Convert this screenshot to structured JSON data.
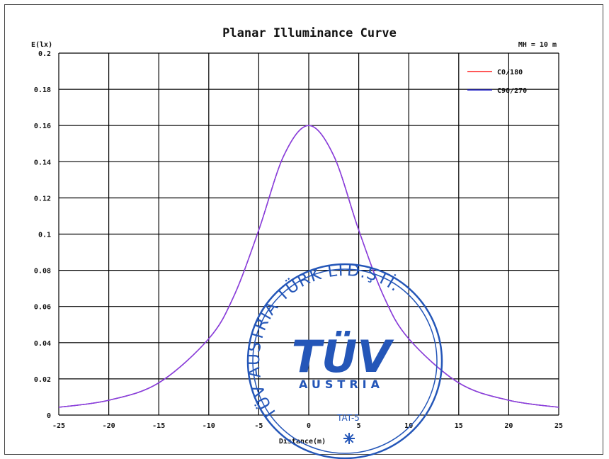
{
  "chart_data": {
    "type": "line",
    "title": "Planar Illuminance Curve",
    "ylabel": "E(lx)",
    "xlabel": "Distance(m)",
    "annotation": "MH = 10 m",
    "xlim": [
      -25,
      25
    ],
    "ylim": [
      0,
      0.2
    ],
    "x_ticks": [
      "-25",
      "-20",
      "-15",
      "-10",
      "-5",
      "0",
      "5",
      "10",
      "15",
      "20",
      "25"
    ],
    "y_ticks": [
      "0",
      "0.02",
      "0.04",
      "0.06",
      "0.08",
      "0.1",
      "0.12",
      "0.14",
      "0.16",
      "0.18",
      "0.2"
    ],
    "grid": true,
    "legend_position": "top-right",
    "x": [
      -25,
      -20,
      -15,
      -10,
      -7.5,
      -5,
      -2.5,
      0,
      2.5,
      5,
      7.5,
      10,
      15,
      20,
      25
    ],
    "series": [
      {
        "name": "C0/180",
        "color": "#ff2020",
        "values": [
          0.0043,
          0.0082,
          0.0178,
          0.0422,
          0.0656,
          0.1022,
          0.1433,
          0.16,
          0.1433,
          0.1022,
          0.0656,
          0.0422,
          0.0178,
          0.0082,
          0.0043
        ]
      },
      {
        "name": "C90/270",
        "color": "#2222cc",
        "values": [
          0.0043,
          0.0082,
          0.0178,
          0.0422,
          0.0656,
          0.1022,
          0.1433,
          0.16,
          0.1433,
          0.1022,
          0.0656,
          0.0422,
          0.0178,
          0.0082,
          0.0043
        ]
      }
    ],
    "overlap_color": "#8a3ee0"
  },
  "stamp": {
    "ring_text": "TÜV AUSTRIA TÜRK LTD.ŞTİ.",
    "logo": "TÜV",
    "sub": "AUSTRIA",
    "code": "TAT-5",
    "color": "#2456b8"
  }
}
